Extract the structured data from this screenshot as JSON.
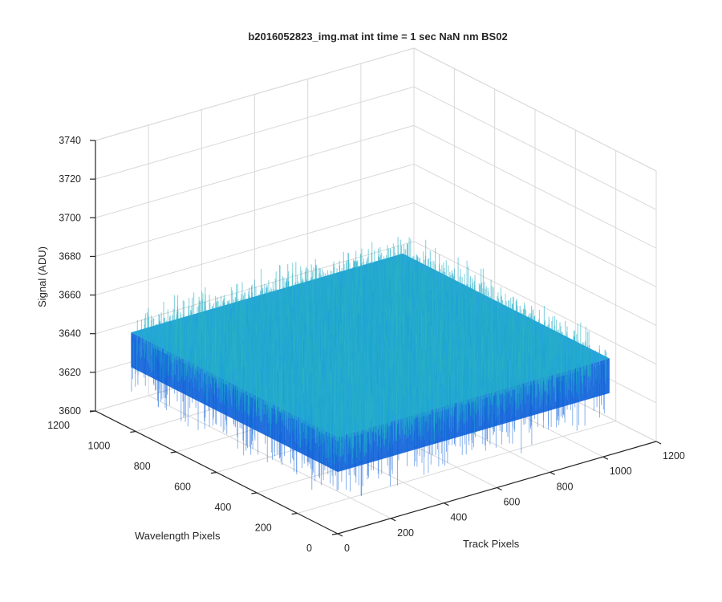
{
  "chart_data": {
    "type": "surface",
    "title": "b2016052823_img.mat int time = 1 sec  NaN nm BS02",
    "xlabel": "Track Pixels",
    "ylabel": "Wavelength Pixels",
    "zlabel": "Signal (ADU)",
    "xlim": [
      0,
      1200
    ],
    "ylim": [
      0,
      1200
    ],
    "zlim": [
      3600,
      3740
    ],
    "x_ticks": [
      "0",
      "200",
      "400",
      "600",
      "800",
      "1000",
      "1200"
    ],
    "y_ticks": [
      "0",
      "200",
      "400",
      "600",
      "800",
      "1000",
      "1200"
    ],
    "z_ticks": [
      "3600",
      "3620",
      "3640",
      "3660",
      "3680",
      "3700",
      "3720",
      "3740"
    ],
    "grid": true,
    "colormap": "parula",
    "surface": {
      "x_range": [
        0,
        1024
      ],
      "y_range": [
        0,
        1024
      ],
      "mean_signal": 3640,
      "noise_range": [
        3610,
        3700
      ]
    },
    "colors": {
      "low": "#0b5fd9",
      "mid": "#1aa0d8",
      "high": "#3fc9a8",
      "peak": "#8fd35a",
      "axis": "#262626",
      "grid": "#d9d9d9"
    }
  }
}
